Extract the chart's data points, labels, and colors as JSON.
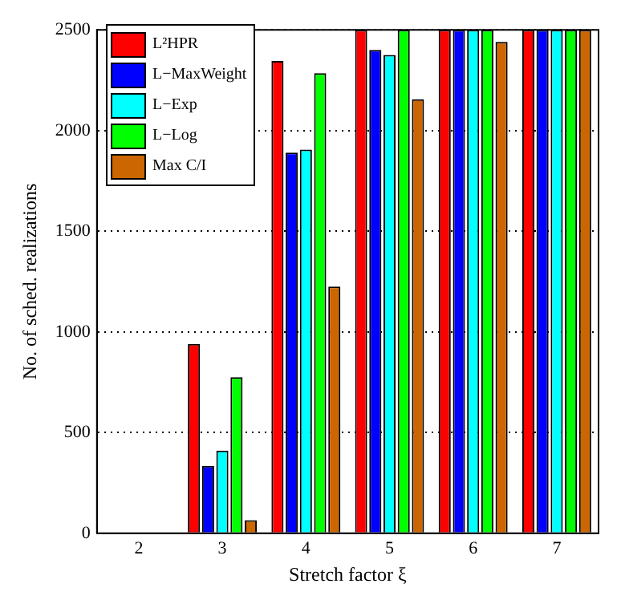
{
  "chart_data": {
    "type": "bar",
    "xlabel": "Stretch factor ξ",
    "ylabel": "No. of sched. realizations",
    "categories": [
      "2",
      "3",
      "4",
      "5",
      "6",
      "7"
    ],
    "series": [
      {
        "name": "L²HPR",
        "color": "#ff0000",
        "values": [
          0,
          940,
          2345,
          2500,
          2500,
          2500
        ]
      },
      {
        "name": "L−MaxWeight",
        "color": "#0000ff",
        "values": [
          0,
          335,
          1890,
          2400,
          2500,
          2500
        ]
      },
      {
        "name": "L−Exp",
        "color": "#00ffff",
        "values": [
          0,
          410,
          1905,
          2375,
          2500,
          2500
        ]
      },
      {
        "name": "L−Log",
        "color": "#00ff00",
        "values": [
          0,
          775,
          2285,
          2500,
          2500,
          2500
        ]
      },
      {
        "name": "Max C/I",
        "color": "#cc6600",
        "values": [
          0,
          65,
          1225,
          2155,
          2440,
          2500
        ]
      }
    ],
    "ylim": [
      0,
      2500
    ],
    "yticks": [
      0,
      500,
      1000,
      1500,
      2000,
      2500
    ],
    "grid": "y",
    "legend": "top left"
  }
}
